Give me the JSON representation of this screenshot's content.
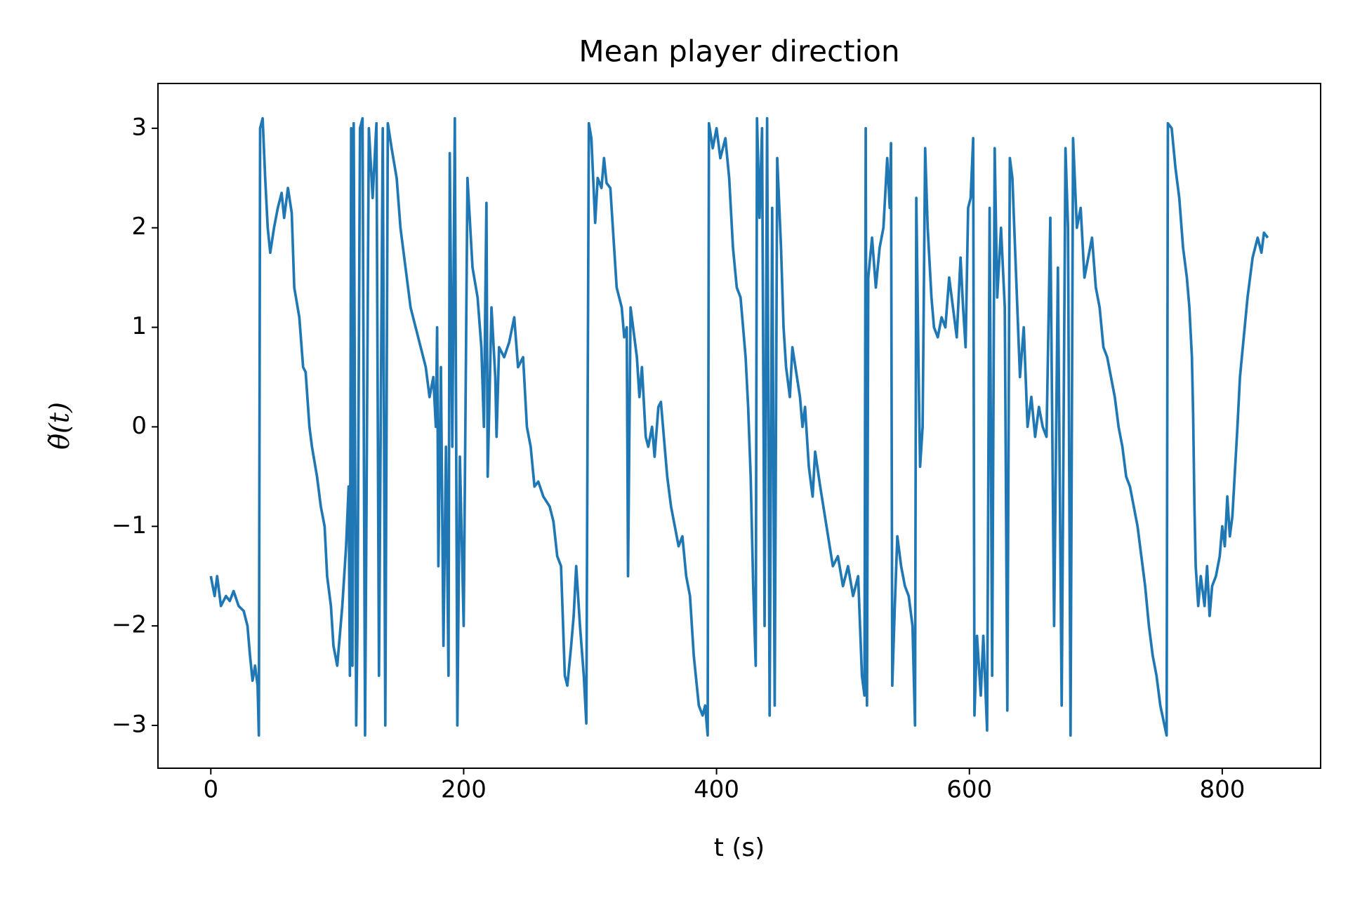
{
  "chart_data": {
    "type": "line",
    "title": "Mean player direction",
    "xlabel": "t (s)",
    "ylabel": "θ̃(t)",
    "color": "#1f77b4",
    "xlim": [
      -41.8,
      877.8
    ],
    "ylim": [
      -3.43,
      3.45
    ],
    "xticks": [
      0,
      200,
      400,
      600,
      800
    ],
    "yticks": [
      {
        "value": -3,
        "label": "−3"
      },
      {
        "value": -2,
        "label": "−2"
      },
      {
        "value": -1,
        "label": "−1"
      },
      0,
      1,
      2,
      3
    ],
    "grid": false,
    "x": [
      0,
      3,
      5,
      8,
      12,
      15,
      18,
      22,
      26,
      29,
      31,
      33,
      35,
      37,
      38,
      39,
      41,
      43,
      45,
      47,
      50,
      53,
      56,
      58,
      61,
      64,
      66,
      70,
      73,
      75,
      78,
      80,
      84,
      87,
      90,
      92,
      95,
      97,
      100,
      104,
      107,
      109,
      110,
      111,
      112,
      113,
      115,
      116,
      118,
      120,
      122,
      125,
      128,
      131,
      133,
      136,
      138,
      140,
      143,
      147,
      150,
      154,
      158,
      162,
      166,
      170,
      173,
      176,
      178,
      179,
      180,
      182,
      184,
      186,
      188,
      189,
      191,
      193,
      195,
      197,
      200,
      203,
      207,
      211,
      214,
      216,
      218,
      219,
      222,
      225,
      226,
      228,
      232,
      236,
      240,
      243,
      247,
      250,
      253,
      256,
      259,
      263,
      268,
      271,
      274,
      277,
      280,
      282,
      285,
      287,
      289,
      292,
      295,
      297,
      299,
      301,
      304,
      306,
      309,
      311,
      313,
      316,
      319,
      321,
      325,
      327,
      329,
      330,
      332,
      335,
      337,
      339,
      341,
      344,
      346,
      349,
      351,
      354,
      356,
      359,
      361,
      364,
      367,
      370,
      373,
      376,
      379,
      382,
      386,
      389,
      391,
      393,
      394,
      397,
      400,
      403,
      407,
      410,
      413,
      416,
      419,
      421,
      423,
      425,
      427,
      429,
      431,
      432,
      434,
      436,
      438,
      440,
      442,
      444,
      446,
      448,
      451,
      453,
      455,
      458,
      460,
      463,
      466,
      468,
      470,
      473,
      476,
      478,
      482,
      487,
      492,
      496,
      500,
      504,
      508,
      512,
      515,
      517,
      518,
      519,
      520,
      523,
      526,
      529,
      532,
      535,
      537,
      538,
      539,
      541,
      543,
      546,
      549,
      552,
      555,
      557,
      558,
      560,
      561,
      563,
      565,
      567,
      570,
      572,
      575,
      578,
      581,
      584,
      587,
      590,
      593,
      595,
      597,
      599,
      601,
      603,
      604,
      606,
      609,
      611,
      614,
      616,
      618,
      620,
      622,
      625,
      628,
      630,
      632,
      634,
      637,
      640,
      643,
      646,
      649,
      652,
      655,
      658,
      661,
      664,
      667,
      670,
      673,
      676,
      678,
      680,
      682,
      685,
      688,
      691,
      694,
      697,
      700,
      703,
      706,
      709,
      712,
      715,
      718,
      721,
      724,
      727,
      730,
      733,
      736,
      739,
      742,
      745,
      748,
      751,
      756,
      757,
      760,
      763,
      766,
      769,
      772,
      774,
      776,
      777,
      778,
      779,
      781,
      783,
      786,
      788,
      790,
      792,
      795,
      798,
      800,
      802,
      804,
      806,
      808,
      812,
      814,
      817,
      820,
      824,
      828,
      831,
      833,
      836
    ],
    "values": [
      -1.5,
      -1.7,
      -1.5,
      -1.8,
      -1.7,
      -1.75,
      -1.65,
      -1.8,
      -1.85,
      -2.0,
      -2.3,
      -2.55,
      -2.4,
      -2.6,
      -3.1,
      3.0,
      3.1,
      2.5,
      2.0,
      1.75,
      2.0,
      2.2,
      2.35,
      2.1,
      2.4,
      2.15,
      1.4,
      1.1,
      0.6,
      0.55,
      0.0,
      -0.2,
      -0.5,
      -0.8,
      -1.0,
      -1.5,
      -1.8,
      -2.2,
      -2.4,
      -1.8,
      -1.2,
      -0.6,
      -2.5,
      3.0,
      -2.4,
      3.05,
      -3.0,
      -2.0,
      3.0,
      3.1,
      -3.1,
      3.0,
      2.3,
      3.05,
      -2.5,
      3.0,
      -3.0,
      3.05,
      2.8,
      2.5,
      2.0,
      1.6,
      1.2,
      1.0,
      0.8,
      0.6,
      0.3,
      0.5,
      0.0,
      1.0,
      -1.4,
      0.6,
      -2.2,
      -0.2,
      -2.5,
      2.75,
      -0.2,
      3.1,
      -3.0,
      -0.3,
      -2.0,
      2.5,
      1.6,
      1.3,
      0.8,
      0.0,
      2.25,
      -0.5,
      1.2,
      0.5,
      -0.1,
      0.8,
      0.7,
      0.85,
      1.1,
      0.6,
      0.7,
      0.0,
      -0.2,
      -0.6,
      -0.55,
      -0.7,
      -0.8,
      -0.95,
      -1.3,
      -1.4,
      -2.5,
      -2.6,
      -2.2,
      -1.9,
      -1.4,
      -2.0,
      -2.5,
      -2.98,
      3.05,
      2.9,
      2.05,
      2.5,
      2.4,
      2.7,
      2.45,
      2.4,
      1.8,
      1.4,
      1.2,
      0.9,
      1.0,
      -1.5,
      1.2,
      0.9,
      0.7,
      0.3,
      0.6,
      -0.1,
      -0.2,
      0.0,
      -0.3,
      0.2,
      0.25,
      -0.2,
      -0.5,
      -0.8,
      -1.0,
      -1.2,
      -1.1,
      -1.5,
      -1.7,
      -2.3,
      -2.8,
      -2.9,
      -2.8,
      -3.1,
      3.05,
      2.8,
      3.0,
      2.7,
      2.9,
      2.5,
      1.8,
      1.4,
      1.3,
      1.0,
      0.7,
      0.2,
      -0.5,
      -1.6,
      -2.4,
      3.1,
      2.1,
      3.0,
      -2.0,
      3.1,
      -2.9,
      2.2,
      -2.8,
      2.7,
      1.8,
      1.0,
      0.6,
      0.3,
      0.8,
      0.55,
      0.3,
      0.0,
      0.2,
      -0.4,
      -0.7,
      -0.25,
      -0.6,
      -1.0,
      -1.4,
      -1.3,
      -1.6,
      -1.4,
      -1.7,
      -1.5,
      -2.5,
      -2.7,
      3.0,
      -2.8,
      1.5,
      1.9,
      1.4,
      1.8,
      2.0,
      2.7,
      2.2,
      2.85,
      -2.6,
      -1.8,
      -1.1,
      -1.4,
      -1.6,
      -1.7,
      -2.0,
      -3.0,
      2.3,
      0.4,
      -0.4,
      0.0,
      2.8,
      2.0,
      1.3,
      1.0,
      0.9,
      1.1,
      1.0,
      1.5,
      1.2,
      0.9,
      1.7,
      1.2,
      0.8,
      2.2,
      2.3,
      2.9,
      -2.9,
      -2.1,
      -2.7,
      -2.1,
      -3.05,
      2.2,
      -2.5,
      2.8,
      1.3,
      2.0,
      1.2,
      -2.85,
      2.7,
      2.5,
      1.5,
      0.5,
      1.0,
      0.0,
      0.3,
      -0.1,
      0.2,
      0.0,
      -0.1,
      2.1,
      -2.0,
      1.6,
      -2.8,
      2.8,
      2.0,
      -3.1,
      2.9,
      2.0,
      2.2,
      1.5,
      1.7,
      1.9,
      1.4,
      1.2,
      0.8,
      0.7,
      0.5,
      0.3,
      0.0,
      -0.2,
      -0.5,
      -0.6,
      -0.8,
      -1.0,
      -1.3,
      -1.6,
      -2.0,
      -2.3,
      -2.5,
      -2.8,
      -3.1,
      3.05,
      3.0,
      2.6,
      2.3,
      1.8,
      1.5,
      1.2,
      0.7,
      0.1,
      -0.8,
      -1.4,
      -1.8,
      -1.5,
      -1.8,
      -1.4,
      -1.9,
      -1.6,
      -1.5,
      -1.3,
      -1.0,
      -1.2,
      -0.7,
      -1.1,
      -0.9,
      0.0,
      0.5,
      0.9,
      1.3,
      1.7,
      1.9,
      1.75,
      1.95,
      1.9
    ]
  }
}
